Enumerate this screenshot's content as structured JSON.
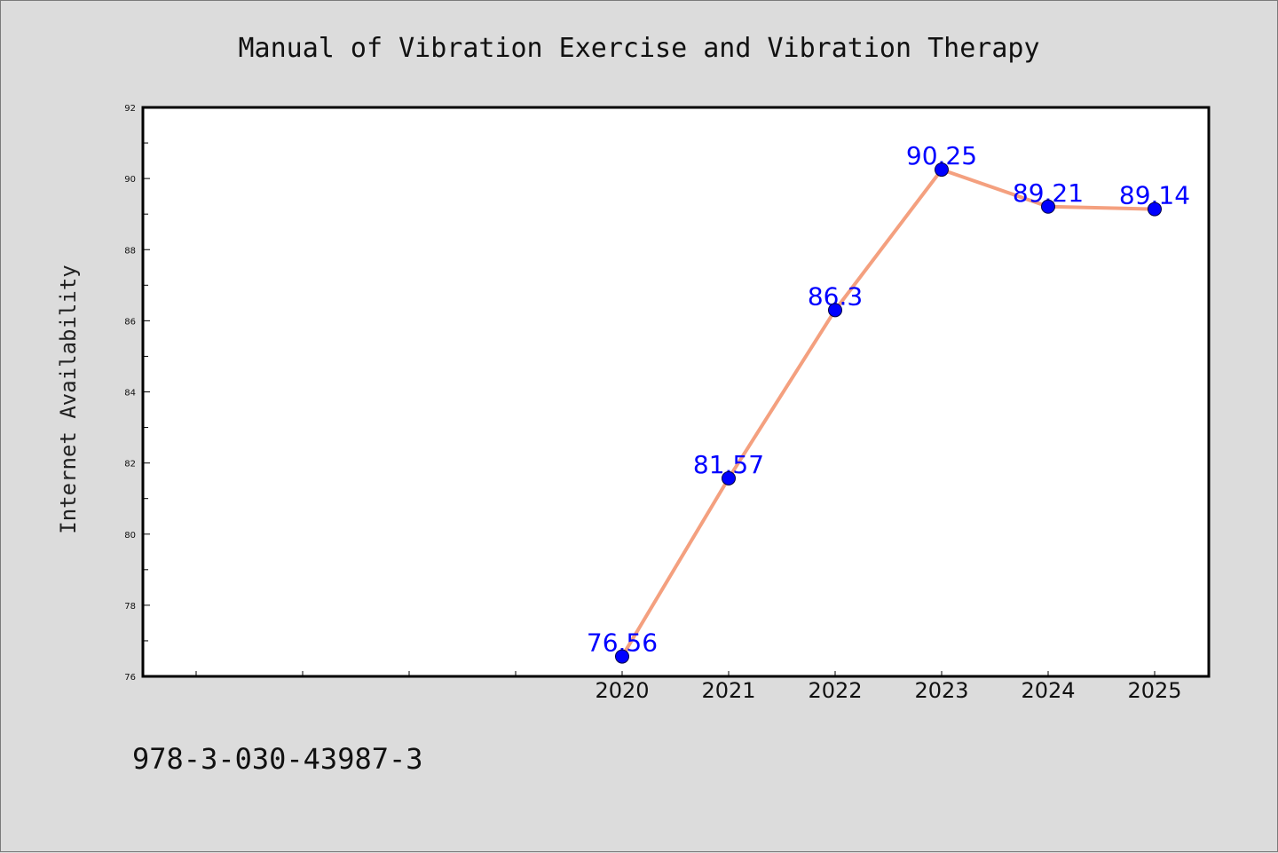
{
  "chart_data": {
    "type": "line",
    "title": "Manual of Vibration Exercise and Vibration Therapy",
    "xlabel": "",
    "ylabel": "Internet Availability",
    "categories": [
      "2020",
      "2021",
      "2022",
      "2023",
      "2024",
      "2025"
    ],
    "series": [
      {
        "values": [
          76.56,
          81.57,
          86.3,
          90.25,
          89.21,
          89.14
        ],
        "line_color": "#f4a07f",
        "marker_color": "#0000ff"
      }
    ],
    "data_labels": [
      "76.56",
      "81.57",
      "86.3",
      "90.25",
      "89.21",
      "89.14"
    ],
    "ylim": [
      76,
      92
    ],
    "yticks": [
      "76",
      "78",
      "80",
      "82",
      "84",
      "86",
      "88",
      "90",
      "92"
    ],
    "grid": false,
    "legend": "none"
  },
  "footer_text": "978-3-030-43987-3",
  "colors": {
    "background": "#dcdcdc",
    "plot_background": "#ffffff",
    "line": "#f4a07f",
    "marker": "#0000ff",
    "label": "#0000ff"
  }
}
